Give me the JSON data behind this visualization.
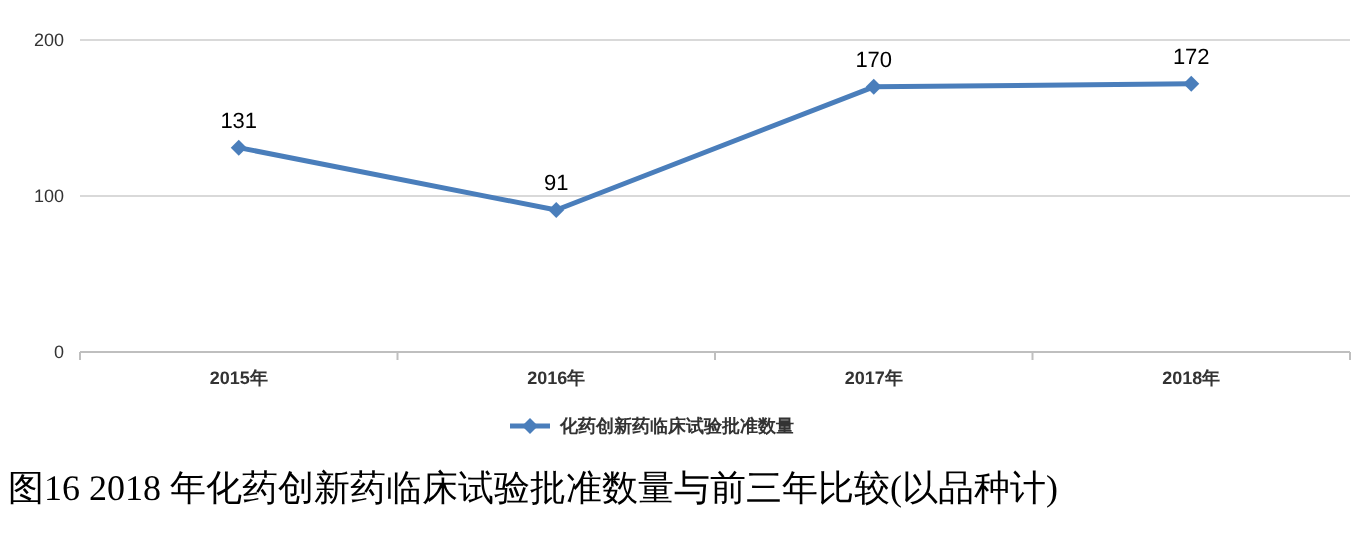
{
  "chart_data": {
    "type": "line",
    "title": "图16 2018 年化药创新药临床试验批准数量与前三年比较(以品种计)",
    "categories": [
      "2015年",
      "2016年",
      "2017年",
      "2018年"
    ],
    "series": [
      {
        "name": "化药创新药临床试验批准数量",
        "color": "#4a7ebb",
        "values": [
          131,
          91,
          170,
          172
        ]
      }
    ],
    "ylim": [
      0,
      200
    ],
    "yticks": [
      0,
      100,
      200
    ],
    "grid": "y",
    "legend": "bottom",
    "marker": "diamond",
    "data_labels": true
  }
}
